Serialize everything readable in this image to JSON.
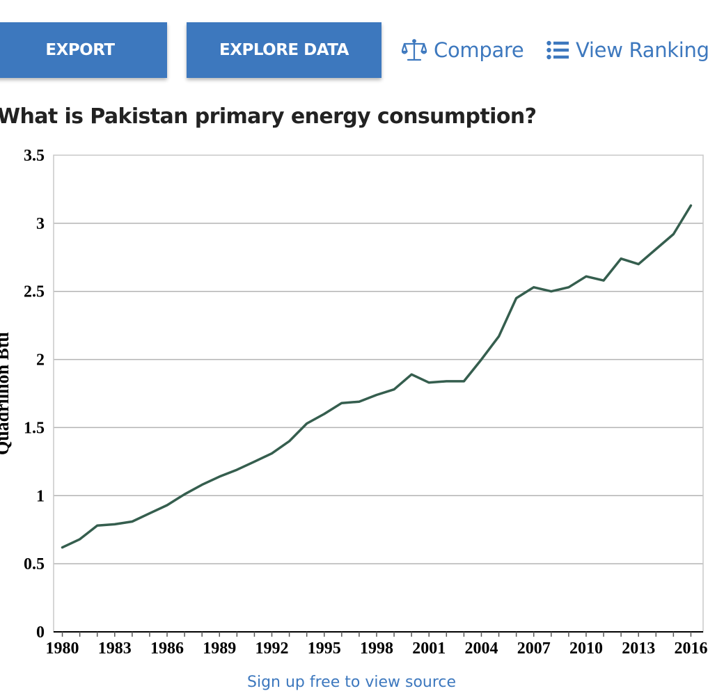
{
  "toolbar": {
    "export_label": "EXPORT",
    "explore_label": "EXPLORE DATA",
    "compare_label": "Compare",
    "ranking_label": "View Ranking",
    "accent_color": "#3d78be"
  },
  "question": "What is Pakistan primary energy consumption?",
  "footer_link": "Sign up free to view source",
  "chart_data": {
    "type": "line",
    "xlabel": "",
    "ylabel": "Quadrillion Btu",
    "ylim": [
      0,
      3.5
    ],
    "xlim": [
      1979.5,
      2016.7
    ],
    "yticks": [
      "0",
      "0.5",
      "1",
      "1.5",
      "2",
      "2.5",
      "3",
      "3.5"
    ],
    "xticks": [
      "1980",
      "1983",
      "1986",
      "1989",
      "1992",
      "1995",
      "1998",
      "2001",
      "2004",
      "2007",
      "2010",
      "2013",
      "2016"
    ],
    "grid": true,
    "line_color": "#355e4e",
    "series": [
      {
        "x": [
          1980,
          1981,
          1982,
          1983,
          1984,
          1985,
          1986,
          1987,
          1988,
          1989,
          1990,
          1991,
          1992,
          1993,
          1994,
          1995,
          1996,
          1997,
          1998,
          1999,
          2000,
          2001,
          2002,
          2003,
          2004,
          2005,
          2006,
          2007,
          2008,
          2009,
          2010,
          2011,
          2012,
          2013,
          2014,
          2015,
          2016
        ],
        "values": [
          0.62,
          0.68,
          0.78,
          0.79,
          0.81,
          0.87,
          0.93,
          1.01,
          1.08,
          1.14,
          1.19,
          1.25,
          1.31,
          1.4,
          1.53,
          1.6,
          1.68,
          1.69,
          1.74,
          1.78,
          1.89,
          1.83,
          1.84,
          1.84,
          2.0,
          2.17,
          2.45,
          2.53,
          2.5,
          2.53,
          2.61,
          2.58,
          2.74,
          2.7,
          2.81,
          2.92,
          3.13
        ]
      }
    ]
  }
}
